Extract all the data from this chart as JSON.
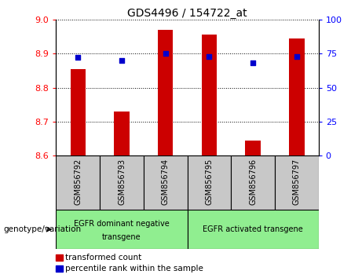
{
  "title": "GDS4496 / 154722_at",
  "categories": [
    "GSM856792",
    "GSM856793",
    "GSM856794",
    "GSM856795",
    "GSM856796",
    "GSM856797"
  ],
  "bar_values": [
    8.855,
    8.73,
    8.97,
    8.955,
    8.645,
    8.945
  ],
  "percentile_values": [
    72,
    70,
    75,
    73,
    68,
    73
  ],
  "ylim_left": [
    8.6,
    9.0
  ],
  "ylim_right": [
    0,
    100
  ],
  "yticks_left": [
    8.6,
    8.7,
    8.8,
    8.9,
    9.0
  ],
  "yticks_right": [
    0,
    25,
    50,
    75,
    100
  ],
  "bar_color": "#cc0000",
  "dot_color": "#0000cc",
  "bar_bottom": 8.6,
  "group1_label_line1": "EGFR dominant negative",
  "group1_label_line2": "transgene",
  "group2_label": "EGFR activated transgene",
  "xlabel_annotation": "genotype/variation",
  "legend_bar_label": "transformed count",
  "legend_dot_label": "percentile rank within the sample",
  "sample_bg": "#c8c8c8",
  "group_bg": "#90ee90",
  "plot_bg": "#ffffff"
}
